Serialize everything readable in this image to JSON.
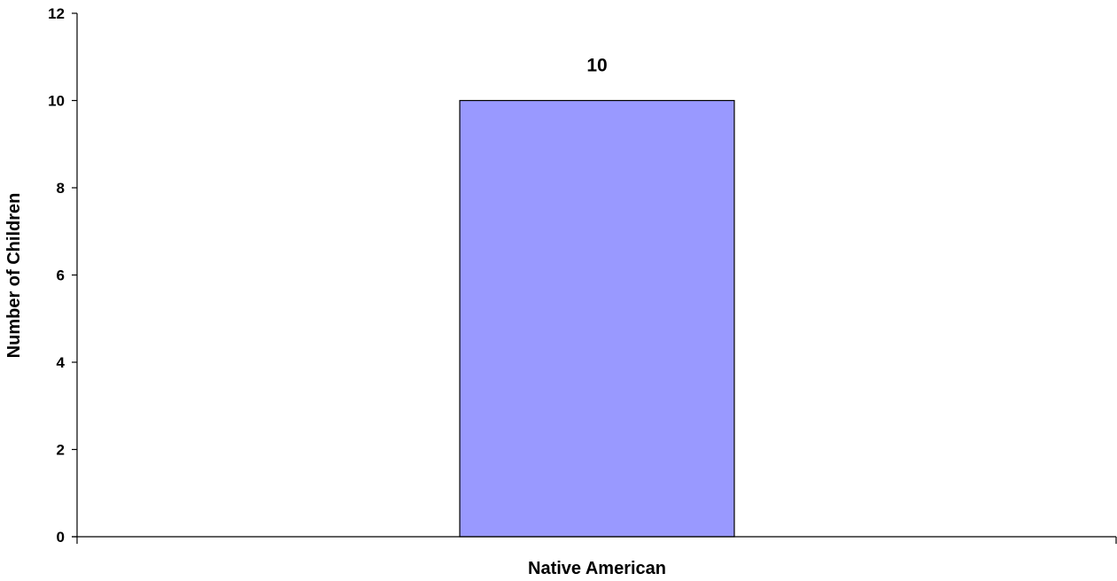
{
  "chart_data": {
    "type": "bar",
    "title": "",
    "xlabel": "",
    "ylabel": "Number of Children",
    "categories": [
      "Native American"
    ],
    "values": [
      10
    ],
    "data_labels": [
      "10"
    ],
    "ylim": [
      0,
      12
    ],
    "yticks": [
      0,
      2,
      4,
      6,
      8,
      10,
      12
    ],
    "grid": false,
    "legend": "none",
    "colors": {
      "bar_fill": "#9999ff",
      "bar_stroke": "#000000",
      "axis": "#000000"
    }
  }
}
